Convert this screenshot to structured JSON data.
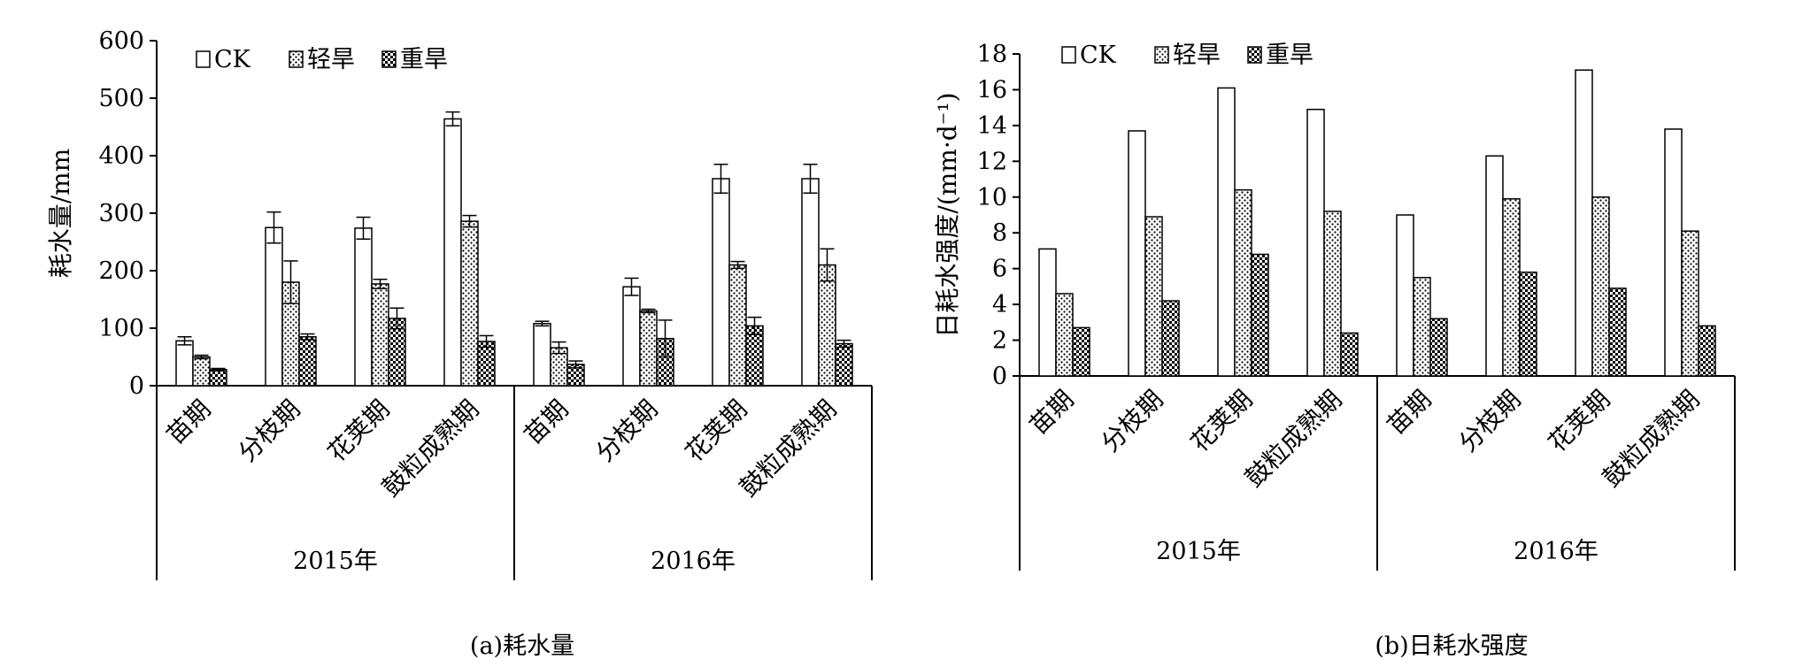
{
  "legend_labels": [
    "CK",
    "轻旱",
    "重旱"
  ],
  "captions": [
    "(a)耗水量",
    "(b)日耗水强度"
  ],
  "chart_data": [
    {
      "type": "bar",
      "ylabel": "耗水量/mm",
      "ylim": [
        0,
        600
      ],
      "yticks": [
        0,
        100,
        200,
        300,
        400,
        500,
        600
      ],
      "groups": [
        "2015年",
        "2016年"
      ],
      "categories": [
        "苗期",
        "分枝期",
        "花荚期",
        "鼓粒成熟期"
      ],
      "legend_position": "top-left",
      "series": [
        {
          "name": "CK",
          "pattern": "open",
          "values": [
            [
              78,
              275,
              274,
              464
            ],
            [
              108,
              172,
              360,
              360
            ]
          ],
          "errors": [
            [
              7,
              27,
              19,
              12
            ],
            [
              4,
              15,
              25,
              25
            ]
          ]
        },
        {
          "name": "轻旱",
          "pattern": "dots",
          "values": [
            [
              50,
              180,
              177,
              286
            ],
            [
              66,
              130,
              210,
              210
            ]
          ],
          "errors": [
            [
              3,
              37,
              8,
              10
            ],
            [
              10,
              3,
              6,
              28
            ]
          ]
        },
        {
          "name": "重旱",
          "pattern": "checker",
          "values": [
            [
              28,
              85,
              117,
              77
            ],
            [
              37,
              82,
              104,
              73
            ]
          ],
          "errors": [
            [
              2,
              5,
              18,
              10
            ],
            [
              6,
              32,
              15,
              6
            ]
          ]
        }
      ]
    },
    {
      "type": "bar",
      "ylabel": "日耗水强度/(mm·d⁻¹)",
      "ylim": [
        0,
        18
      ],
      "yticks": [
        0,
        2,
        4,
        6,
        8,
        10,
        12,
        14,
        16,
        18
      ],
      "groups": [
        "2015年",
        "2016年"
      ],
      "categories": [
        "苗期",
        "分枝期",
        "花荚期",
        "鼓粒成熟期"
      ],
      "legend_position": "top-left",
      "series": [
        {
          "name": "CK",
          "pattern": "open",
          "values": [
            [
              7.1,
              13.7,
              16.1,
              14.9
            ],
            [
              9.0,
              12.3,
              17.1,
              13.8
            ]
          ]
        },
        {
          "name": "轻旱",
          "pattern": "dots",
          "values": [
            [
              4.6,
              8.9,
              10.4,
              9.2
            ],
            [
              5.5,
              9.9,
              10.0,
              8.1
            ]
          ]
        },
        {
          "name": "重旱",
          "pattern": "checker",
          "values": [
            [
              2.7,
              4.2,
              6.8,
              2.4
            ],
            [
              3.2,
              5.8,
              4.9,
              2.8
            ]
          ]
        }
      ]
    }
  ]
}
